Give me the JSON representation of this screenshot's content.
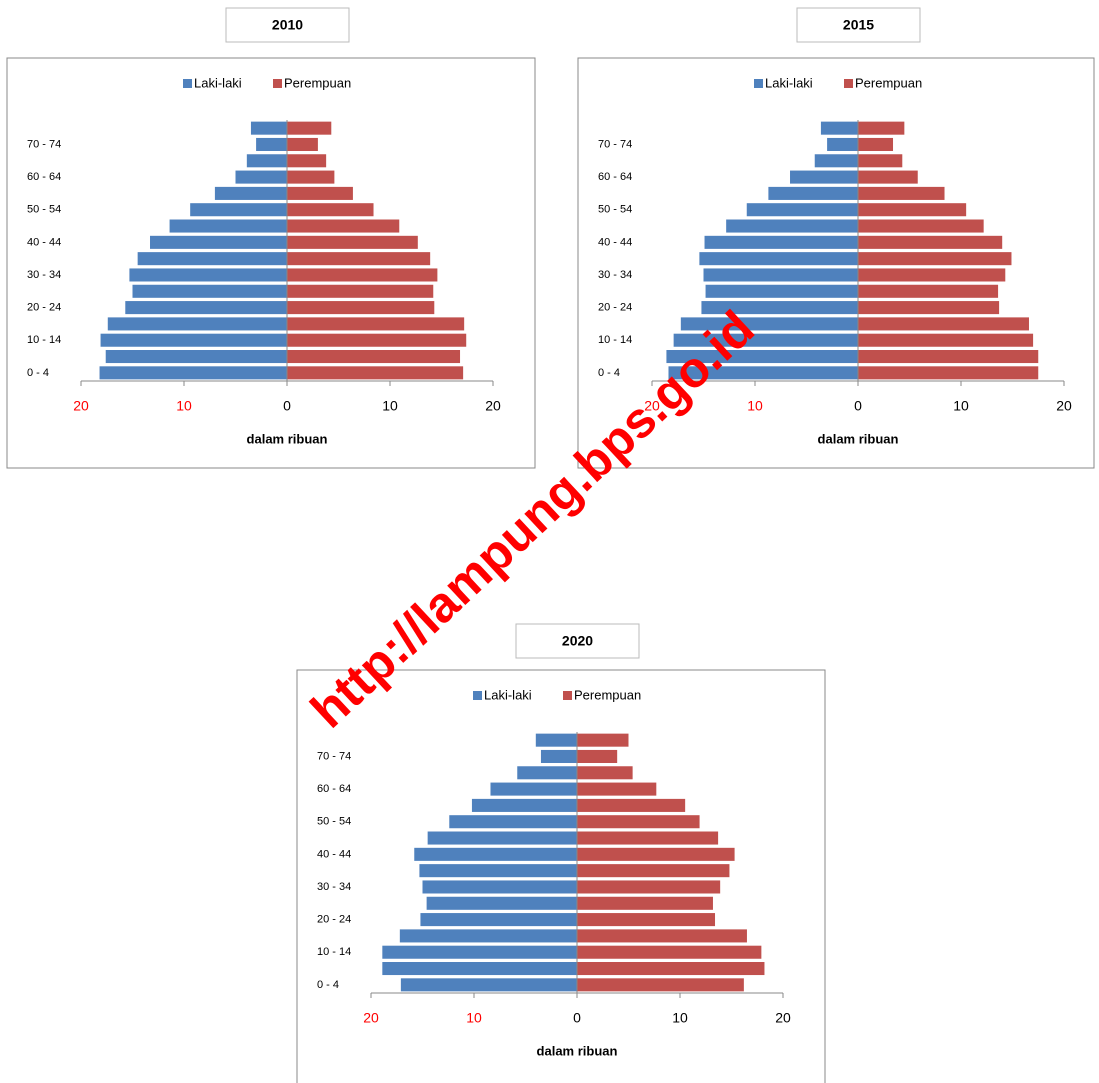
{
  "chart_data": [
    {
      "type": "bar",
      "orientation": "horizontal",
      "title": "2010",
      "categories": [
        "0 - 4",
        null,
        "10 - 14",
        null,
        "20 - 24",
        null,
        "30 - 34",
        null,
        "40 - 44",
        null,
        "50 - 54",
        null,
        "60 - 64",
        null,
        "70 - 74",
        null
      ],
      "series": [
        {
          "name": "Laki-laki",
          "color": "#4f81bd",
          "values": [
            -18.2,
            -17.6,
            -18.1,
            -17.4,
            -15.7,
            -15.0,
            -15.3,
            -14.5,
            -13.3,
            -11.4,
            -9.4,
            -7.0,
            -5.0,
            -3.9,
            -3.0,
            -3.5
          ]
        },
        {
          "name": "Perempuan",
          "color": "#c0504d",
          "values": [
            17.1,
            16.8,
            17.4,
            17.2,
            14.3,
            14.2,
            14.6,
            13.9,
            12.7,
            10.9,
            8.4,
            6.4,
            4.6,
            3.8,
            3.0,
            4.3
          ]
        }
      ],
      "xlim": [
        -20,
        20
      ],
      "xticks": [
        {
          "value": -20,
          "label": "20"
        },
        {
          "value": -10,
          "label": "10"
        },
        0,
        10,
        20
      ],
      "negative_tick_color": "#ff0000",
      "xlabel": "dalam ribuan"
    },
    {
      "type": "bar",
      "orientation": "horizontal",
      "title": "2015",
      "categories": [
        "0 - 4",
        null,
        "10 - 14",
        null,
        "20 - 24",
        null,
        "30 - 34",
        null,
        "40 - 44",
        null,
        "50 - 54",
        null,
        "60 - 64",
        null,
        "70 - 74",
        null
      ],
      "series": [
        {
          "name": "Laki-laki",
          "color": "#4f81bd",
          "values": [
            -18.4,
            -18.6,
            -17.9,
            -17.2,
            -15.2,
            -14.8,
            -15.0,
            -15.4,
            -14.9,
            -12.8,
            -10.8,
            -8.7,
            -6.6,
            -4.2,
            -3.0,
            -3.6
          ]
        },
        {
          "name": "Perempuan",
          "color": "#c0504d",
          "values": [
            17.5,
            17.5,
            17.0,
            16.6,
            13.7,
            13.6,
            14.3,
            14.9,
            14.0,
            12.2,
            10.5,
            8.4,
            5.8,
            4.3,
            3.4,
            4.5
          ]
        }
      ],
      "xlim": [
        -20,
        20
      ],
      "xticks": [
        {
          "value": -20,
          "label": "20"
        },
        {
          "value": -10,
          "label": "10"
        },
        0,
        10,
        20
      ],
      "negative_tick_color": "#ff0000",
      "xlabel": "dalam ribuan"
    },
    {
      "type": "bar",
      "orientation": "horizontal",
      "title": "2020",
      "categories": [
        "0 - 4",
        null,
        "10 - 14",
        null,
        "20 - 24",
        null,
        "30 - 34",
        null,
        "40 - 44",
        null,
        "50 - 54",
        null,
        "60 - 64",
        null,
        "70 - 74",
        null
      ],
      "series": [
        {
          "name": "Laki-laki",
          "color": "#4f81bd",
          "values": [
            -17.1,
            -18.9,
            -18.9,
            -17.2,
            -15.2,
            -14.6,
            -15.0,
            -15.3,
            -15.8,
            -14.5,
            -12.4,
            -10.2,
            -8.4,
            -5.8,
            -3.5,
            -4.0
          ]
        },
        {
          "name": "Perempuan",
          "color": "#c0504d",
          "values": [
            16.2,
            18.2,
            17.9,
            16.5,
            13.4,
            13.2,
            13.9,
            14.8,
            15.3,
            13.7,
            11.9,
            10.5,
            7.7,
            5.4,
            3.9,
            5.0
          ]
        }
      ],
      "xlim": [
        -20,
        20
      ],
      "xticks": [
        {
          "value": -20,
          "label": "20"
        },
        {
          "value": -10,
          "label": "10"
        },
        0,
        10,
        20
      ],
      "negative_tick_color": "#ff0000",
      "xlabel": "dalam ribuan"
    }
  ],
  "watermark": "http://lampung.bps.go.id"
}
